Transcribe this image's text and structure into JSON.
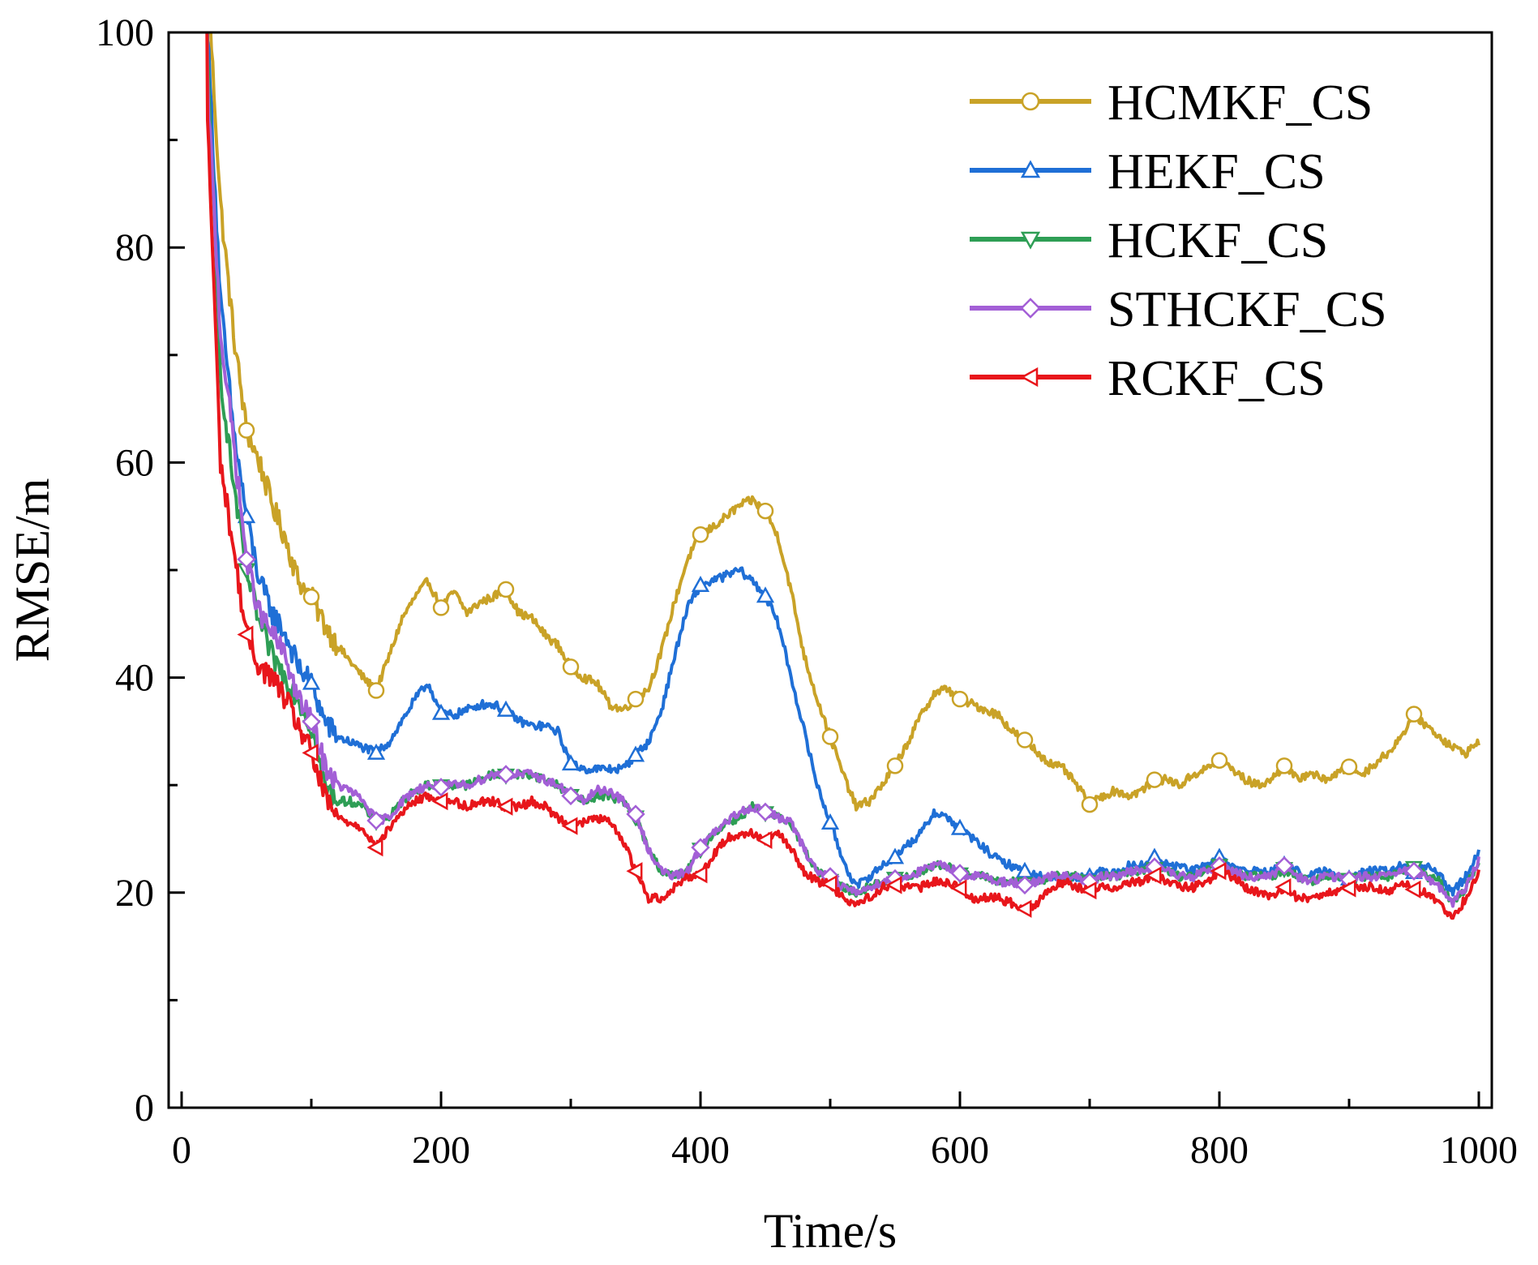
{
  "chart_data": {
    "type": "line",
    "title": "",
    "xlabel": "Time/s",
    "ylabel": "RMSE/m",
    "xlim": [
      -10,
      1010
    ],
    "ylim": [
      0,
      100
    ],
    "xticks": [
      0,
      200,
      400,
      600,
      800,
      1000
    ],
    "yticks": [
      0,
      20,
      40,
      60,
      80,
      100
    ],
    "xtick_labels": [
      "0",
      "200",
      "400",
      "600",
      "800",
      "1000"
    ],
    "ytick_labels": [
      "0",
      "20",
      "40",
      "60",
      "80",
      "100"
    ],
    "x_minor_step": 100,
    "y_minor_step": 10,
    "grid": false,
    "legend_position": "top-right",
    "marker_every": 50,
    "x": [
      0,
      10,
      20,
      30,
      40,
      50,
      60,
      70,
      80,
      90,
      100,
      110,
      120,
      130,
      140,
      150,
      160,
      170,
      180,
      190,
      200,
      210,
      220,
      230,
      240,
      250,
      260,
      270,
      280,
      290,
      300,
      310,
      320,
      330,
      340,
      350,
      360,
      370,
      380,
      390,
      400,
      410,
      420,
      430,
      440,
      450,
      460,
      470,
      480,
      490,
      500,
      510,
      520,
      530,
      540,
      550,
      560,
      570,
      580,
      590,
      600,
      610,
      620,
      630,
      640,
      650,
      660,
      670,
      680,
      690,
      700,
      710,
      720,
      730,
      740,
      750,
      760,
      770,
      780,
      790,
      800,
      810,
      820,
      830,
      840,
      850,
      860,
      870,
      880,
      890,
      900,
      910,
      920,
      930,
      940,
      950,
      960,
      970,
      980,
      990,
      1000
    ],
    "series": [
      {
        "name": "HCMKF_CS",
        "color": "#C9A227",
        "marker": "circle",
        "start_x": 20,
        "values": [
          null,
          null,
          105,
          84,
          72,
          63,
          60,
          56,
          53,
          49,
          47.5,
          45,
          43,
          41.5,
          40,
          38.8,
          42,
          45.5,
          47.5,
          49,
          46.5,
          48,
          46,
          47,
          47.5,
          48.2,
          46,
          45.5,
          44,
          43,
          41,
          40,
          39.5,
          37.5,
          37,
          38,
          39,
          42.5,
          47,
          51,
          53.3,
          54,
          55,
          56,
          56.5,
          55.5,
          53,
          48,
          42,
          38,
          34.5,
          31,
          28,
          28.5,
          30,
          31.8,
          34,
          36.5,
          38.5,
          39,
          38,
          37.5,
          37,
          36.5,
          35,
          34.2,
          33,
          32,
          31.5,
          30,
          28.2,
          29,
          29.5,
          29,
          29.5,
          30.5,
          30.5,
          30,
          31,
          31.5,
          32.3,
          31.5,
          30.5,
          30,
          30.5,
          31.8,
          30.5,
          31.2,
          30.5,
          31,
          31.7,
          31,
          32,
          33,
          34.5,
          36.6,
          35.5,
          34.5,
          33.5,
          33,
          34
        ]
      },
      {
        "name": "HEKF_CS",
        "color": "#1F6FD6",
        "marker": "triangle-up",
        "start_x": 18,
        "values": [
          null,
          null,
          100,
          75,
          63,
          55,
          49,
          46,
          44,
          41,
          39.5,
          36,
          34.5,
          34,
          33.5,
          33,
          34,
          36,
          38,
          39.5,
          36.7,
          36.5,
          37,
          37.5,
          37.5,
          37,
          36,
          35.5,
          35.5,
          35,
          32,
          31.5,
          31.5,
          31.5,
          31.5,
          32.8,
          34,
          37,
          42,
          46.5,
          48.6,
          49,
          49.5,
          50,
          49,
          47.6,
          45,
          40,
          35,
          30,
          26.5,
          23,
          20.5,
          21.5,
          22.5,
          23.3,
          24.5,
          25.5,
          27.5,
          27,
          26,
          25,
          24,
          23,
          22.5,
          22,
          21.5,
          21.5,
          21.3,
          21.5,
          21.5,
          22,
          22,
          22.5,
          22.5,
          23.3,
          22.5,
          22.5,
          22,
          22.5,
          23.3,
          22.5,
          22,
          22,
          22,
          22.6,
          22,
          21.5,
          22,
          21.5,
          21.3,
          22,
          22,
          22,
          22.5,
          21.9,
          22.5,
          21.5,
          20,
          21.5,
          24
        ]
      },
      {
        "name": "HCKF_CS",
        "color": "#2E9E55",
        "marker": "triangle-down",
        "start_x": 18,
        "values": [
          null,
          null,
          98,
          68,
          58,
          50,
          45,
          42,
          40,
          38,
          35.4,
          30,
          28.5,
          28.5,
          28,
          26.6,
          27,
          28.5,
          29.5,
          30,
          29.9,
          30,
          30,
          30.5,
          31,
          30.9,
          31,
          31,
          30.5,
          30,
          29,
          28.5,
          29,
          29,
          28.5,
          27,
          24,
          22,
          21.5,
          22,
          24,
          25.5,
          26.5,
          27,
          28,
          27.4,
          27,
          26.5,
          24,
          22,
          21.1,
          20.5,
          20,
          20.5,
          21,
          21.3,
          21.5,
          22,
          22.5,
          22.5,
          21.7,
          21.5,
          21.5,
          21,
          21,
          20.8,
          21,
          21.5,
          21.5,
          21.5,
          21,
          21.5,
          21.5,
          22,
          22,
          22.2,
          22,
          21.5,
          21.5,
          22,
          22.5,
          22,
          21.5,
          21.5,
          21.5,
          22.2,
          21.5,
          21,
          21.5,
          21.5,
          21.2,
          21.5,
          21.5,
          21.5,
          22,
          22.3,
          21.5,
          21,
          19,
          20.5,
          23
        ]
      },
      {
        "name": "STHCKF_CS",
        "color": "#A35FD6",
        "marker": "diamond",
        "start_x": 18,
        "values": [
          null,
          null,
          95,
          72,
          62,
          51,
          46,
          44,
          42,
          38,
          35.9,
          32,
          30,
          29.5,
          28.5,
          26.7,
          27,
          28.5,
          29.5,
          30,
          29.8,
          30,
          30,
          30.5,
          31,
          31,
          31,
          31,
          30.5,
          30,
          29,
          28.5,
          29.5,
          29.5,
          28.5,
          27.3,
          24,
          22,
          21.5,
          22,
          24.2,
          25.5,
          26.5,
          27.5,
          28,
          27.5,
          27,
          26.5,
          24,
          22,
          21.5,
          20.5,
          20,
          20.5,
          21,
          21.3,
          21.5,
          22,
          22.5,
          22.5,
          21.8,
          21.5,
          21.5,
          21,
          21,
          20.7,
          21,
          21.5,
          21.5,
          21.5,
          21,
          21.5,
          21.5,
          22,
          22,
          22.4,
          22,
          21.5,
          21.5,
          22,
          22.5,
          22,
          21.5,
          21.5,
          21.5,
          22.5,
          21.5,
          21,
          21.5,
          21.5,
          21.2,
          21.5,
          21.5,
          21.5,
          22,
          22,
          21.5,
          20.5,
          19,
          20.5,
          23
        ]
      },
      {
        "name": "RCKF_CS",
        "color": "#E8161B",
        "marker": "triangle-left",
        "start_x": 18,
        "values": [
          null,
          null,
          92,
          60,
          52,
          44,
          41,
          40,
          38,
          35.5,
          33,
          29,
          27,
          26.5,
          26,
          24.2,
          26,
          27.5,
          28.5,
          29,
          28.5,
          28.5,
          28,
          28.5,
          28.5,
          28,
          28,
          28.5,
          28,
          27,
          26.2,
          26.5,
          27,
          26.5,
          25,
          22,
          19.5,
          19.5,
          20.5,
          21.5,
          21.7,
          23.5,
          25,
          25.5,
          25.5,
          24.9,
          25.5,
          24,
          22,
          21,
          20.8,
          19.5,
          19,
          19.5,
          20.5,
          20.7,
          20.5,
          20.5,
          21,
          21,
          20.4,
          19.5,
          19.5,
          19.5,
          19,
          18.5,
          19,
          20.5,
          21,
          20.5,
          20.2,
          20.5,
          20.5,
          21,
          21,
          21.6,
          21,
          20.5,
          20.5,
          21,
          22,
          21.5,
          20.5,
          20,
          19.5,
          20.5,
          19.5,
          19.5,
          20,
          20,
          20.4,
          20.5,
          20.5,
          20,
          21,
          20.3,
          20,
          19,
          17.5,
          19.5,
          22
        ]
      }
    ]
  }
}
